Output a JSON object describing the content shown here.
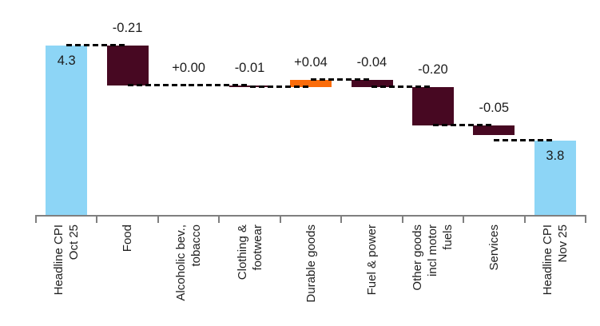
{
  "chart_data": {
    "type": "bar",
    "subtype": "waterfall",
    "title": "",
    "description": "Waterfall decomposition of headline CPI change from Oct 25 to Nov 25",
    "categories": [
      {
        "label_lines": [
          "Headline CPI",
          "Oct 25"
        ],
        "kind": "total",
        "value": 4.3,
        "display": "4.3"
      },
      {
        "label_lines": [
          "Food"
        ],
        "kind": "delta",
        "value": -0.21,
        "display": "-0.21"
      },
      {
        "label_lines": [
          "Alcoholic bev.,",
          "tobacco"
        ],
        "kind": "delta",
        "value": 0.0,
        "display": "+0.00"
      },
      {
        "label_lines": [
          "Clothing &",
          "footwear"
        ],
        "kind": "delta",
        "value": -0.01,
        "display": "-0.01"
      },
      {
        "label_lines": [
          "Durable goods"
        ],
        "kind": "delta",
        "value": 0.04,
        "display": "+0.04"
      },
      {
        "label_lines": [
          "Fuel & power"
        ],
        "kind": "delta",
        "value": -0.04,
        "display": "-0.04"
      },
      {
        "label_lines": [
          "Other goods",
          "incl motor",
          "fuels"
        ],
        "kind": "delta",
        "value": -0.2,
        "display": "-0.20"
      },
      {
        "label_lines": [
          "Services"
        ],
        "kind": "delta",
        "value": -0.05,
        "display": "-0.05"
      },
      {
        "label_lines": [
          "Headline CPI",
          "Nov 25"
        ],
        "kind": "total",
        "value": 3.8,
        "display": "3.8"
      }
    ],
    "ylim": [
      3.4125,
      4.5375
    ],
    "grid": false,
    "legend": "none",
    "connector_style": "dashed",
    "colors": {
      "total": "#8DD5F6",
      "negative": "#470822",
      "positive": "#FB6C0A",
      "connector": "#000000",
      "axis": "#7F7F7F",
      "text": "#1C1C1C"
    }
  }
}
